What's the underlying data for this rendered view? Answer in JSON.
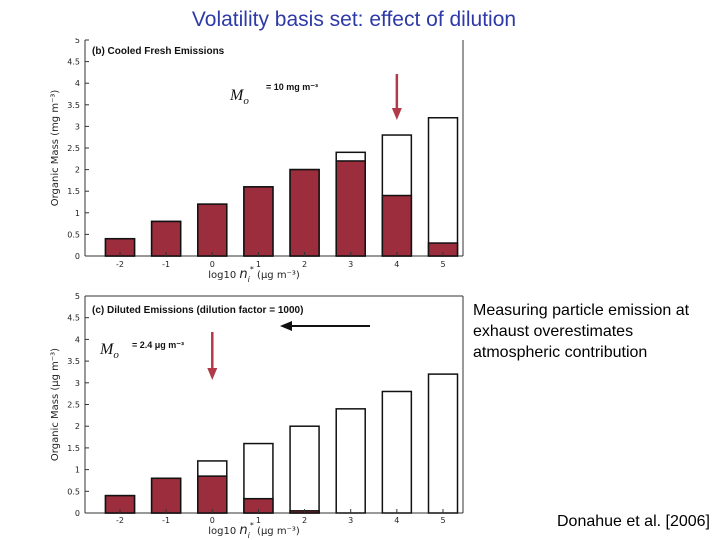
{
  "slide": {
    "title": "Volatility basis set: effect of dilution",
    "note": "Measuring particle emission at exhaust overestimates atmospheric contribution",
    "citation": "Donahue et al. [2006]"
  },
  "colors": {
    "title": "#2e3aa8",
    "particle": "#9b2d3c",
    "arrow": "#b23a48"
  },
  "chart_data": [
    {
      "type": "bar",
      "panel_title": "(b) Cooled Fresh Emissions",
      "categories": [
        "-2",
        "-1",
        "0",
        "1",
        "2",
        "3",
        "4",
        "5"
      ],
      "series": [
        {
          "name": "particle",
          "values": [
            0.4,
            0.8,
            1.2,
            1.6,
            2.0,
            2.2,
            1.4,
            0.3
          ]
        },
        {
          "name": "total",
          "values": [
            0.4,
            0.8,
            1.2,
            1.6,
            2.0,
            2.4,
            2.8,
            3.2
          ]
        }
      ],
      "ylim": [
        0,
        5
      ],
      "yticks": [
        "0",
        "0.5",
        "1",
        "1.5",
        "2",
        "2.5",
        "3",
        "3.5",
        "4",
        "4.5",
        "5"
      ],
      "ylabel": "Organic Mass (mg m⁻³)",
      "xlabel": "log10 ",
      "xlabel_var": "n",
      "xlabel_sub": "i",
      "xlabel_star": "*",
      "xlabel_unit": "(μg m⁻³)",
      "mo_label": "M",
      "mo_sub": "o",
      "mo_value": "= 10 mg m⁻³",
      "arrow_bin": "4"
    },
    {
      "type": "bar",
      "panel_title": "(c) Diluted Emissions (dilution factor = 1000)",
      "categories": [
        "-2",
        "-1",
        "0",
        "1",
        "2",
        "3",
        "4",
        "5"
      ],
      "series": [
        {
          "name": "particle",
          "values": [
            0.4,
            0.8,
            0.85,
            0.33,
            0.05,
            0,
            0,
            0
          ]
        },
        {
          "name": "total",
          "values": [
            0.4,
            0.8,
            1.2,
            1.6,
            2.0,
            2.4,
            2.8,
            3.2
          ]
        }
      ],
      "ylim": [
        0,
        5
      ],
      "yticks": [
        "0",
        "0.5",
        "1",
        "1.5",
        "2",
        "2.5",
        "3",
        "3.5",
        "4",
        "4.5",
        "5"
      ],
      "ylabel": "Organic Mass (μg m⁻³)",
      "xlabel": "log10 ",
      "xlabel_var": "n",
      "xlabel_sub": "i",
      "xlabel_star": "*",
      "xlabel_unit": "(μg m⁻³)",
      "mo_label": "M",
      "mo_sub": "o",
      "mo_value": "= 2.4 μg m⁻³",
      "arrow_bin": "0"
    }
  ]
}
